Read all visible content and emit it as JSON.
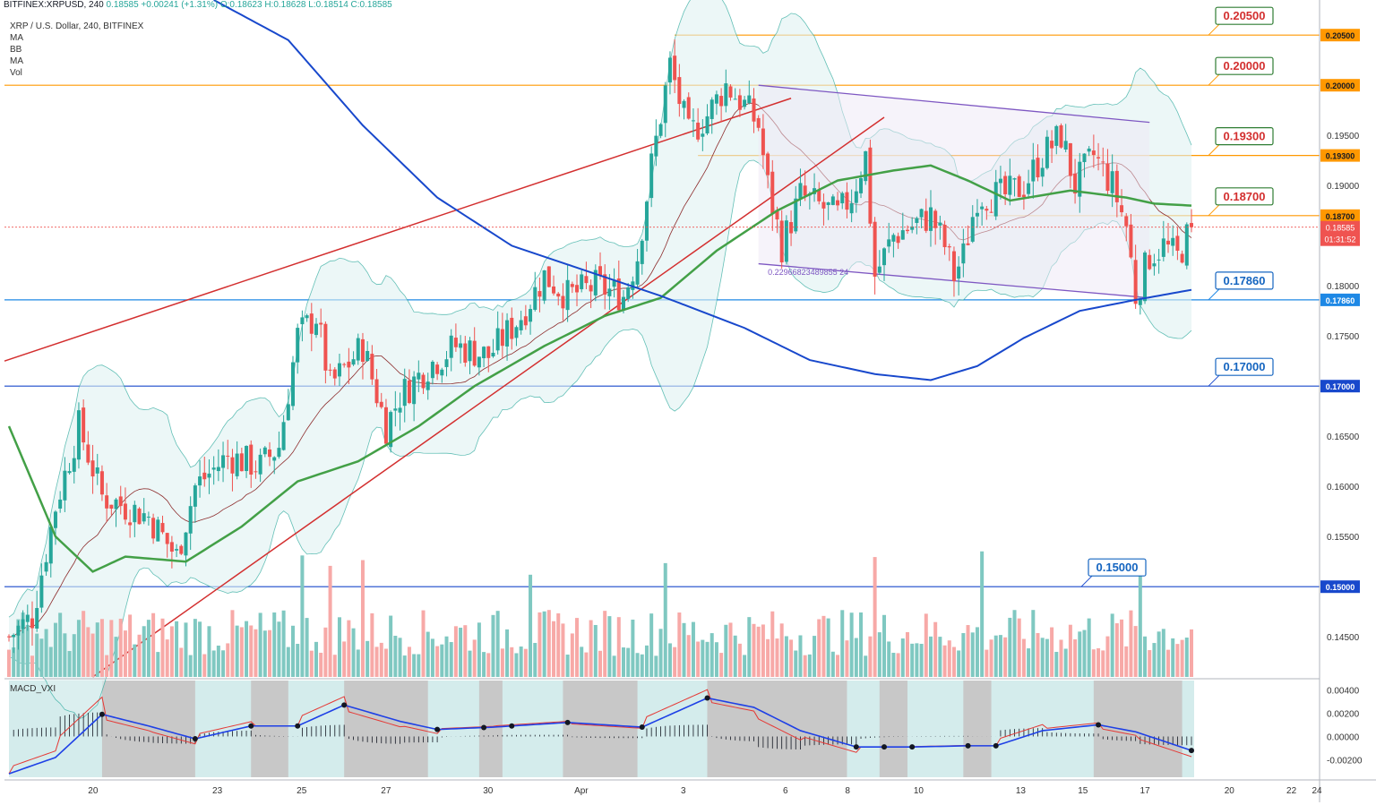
{
  "header": {
    "symbol": "BITFINEX:XRPUSD, 240",
    "last": "0.18585",
    "change": "+0.00241 (+1.31%)",
    "o": "O:0.18623",
    "h": "H:0.18628",
    "l": "L:0.18514",
    "c": "C:0.18585",
    "description": "XRP / U.S. Dollar, 240, BITFINEX"
  },
  "indicators": [
    "MA",
    "BB",
    "MA",
    "Vol"
  ],
  "macd_title": "MACD_VXI",
  "current_price": "0.18585",
  "countdown": "01:31:52",
  "trendline_label": "0.22966823489855 24",
  "colors": {
    "up": "#26a69a",
    "down": "#ef5350",
    "orange": "#ff9800",
    "blue": "#1848cc",
    "green": "#43a047",
    "red_line": "#d32f2f",
    "purple": "#7e57c2",
    "bb_fill": "#e0f2f1"
  },
  "chart_data": {
    "type": "candlestick",
    "title": "XRP / U.S. Dollar, 240, BITFINEX",
    "ylim": [
      0.141,
      0.2085
    ],
    "macd_ylim": [
      -0.0035,
      0.0048
    ],
    "x_tick_labels": [
      "20",
      "23",
      "25",
      "27",
      "30",
      "Apr",
      "3",
      "6",
      "8",
      "10",
      "13",
      "15",
      "17",
      "20",
      "22",
      "24"
    ],
    "y_tick_labels": [
      "0.20000",
      "0.19500",
      "0.19000",
      "0.18000",
      "0.17500",
      "0.16500",
      "0.16000",
      "0.15500",
      "0.14500"
    ],
    "macd_tick_labels": [
      "0.00400",
      "0.00200",
      "0.00000",
      "-0.00200"
    ],
    "horizontal_levels": [
      {
        "price": 0.205,
        "label": "0.20500",
        "color": "#ff9800",
        "text_color": "#d32f2f"
      },
      {
        "price": 0.2,
        "label": "0.20000",
        "color": "#ff9800",
        "text_color": "#d32f2f"
      },
      {
        "price": 0.193,
        "label": "0.19300",
        "color": "#ff9800",
        "text_color": "#d32f2f"
      },
      {
        "price": 0.187,
        "label": "0.18700",
        "color": "#ff9800",
        "text_color": "#d32f2f"
      },
      {
        "price": 0.1786,
        "label": "0.17860",
        "color": "#1e88e5",
        "text_color": "#1565c0"
      },
      {
        "price": 0.17,
        "label": "0.17000",
        "color": "#1848cc",
        "text_color": "#1565c0"
      },
      {
        "price": 0.15,
        "label": "0.15000",
        "color": "#1848cc",
        "text_color": "#1565c0"
      }
    ],
    "anchors": [
      {
        "t": 0,
        "p": 0.145
      },
      {
        "t": 5,
        "p": 0.147
      },
      {
        "t": 10,
        "p": 0.158
      },
      {
        "t": 15,
        "p": 0.166
      },
      {
        "t": 20,
        "p": 0.159
      },
      {
        "t": 25,
        "p": 0.158
      },
      {
        "t": 30,
        "p": 0.157
      },
      {
        "t": 36,
        "p": 0.153
      },
      {
        "t": 40,
        "p": 0.16
      },
      {
        "t": 47,
        "p": 0.163
      },
      {
        "t": 54,
        "p": 0.162
      },
      {
        "t": 58,
        "p": 0.164
      },
      {
        "t": 62,
        "p": 0.175
      },
      {
        "t": 66,
        "p": 0.177
      },
      {
        "t": 69,
        "p": 0.17
      },
      {
        "t": 76,
        "p": 0.174
      },
      {
        "t": 81,
        "p": 0.166
      },
      {
        "t": 84,
        "p": 0.169
      },
      {
        "t": 90,
        "p": 0.172
      },
      {
        "t": 96,
        "p": 0.174
      },
      {
        "t": 103,
        "p": 0.173
      },
      {
        "t": 110,
        "p": 0.177
      },
      {
        "t": 115,
        "p": 0.181
      },
      {
        "t": 120,
        "p": 0.179
      },
      {
        "t": 126,
        "p": 0.18
      },
      {
        "t": 132,
        "p": 0.179
      },
      {
        "t": 135,
        "p": 0.183
      },
      {
        "t": 138,
        "p": 0.192
      },
      {
        "t": 142,
        "p": 0.202
      },
      {
        "t": 146,
        "p": 0.195
      },
      {
        "t": 150,
        "p": 0.197
      },
      {
        "t": 154,
        "p": 0.2
      },
      {
        "t": 158,
        "p": 0.198
      },
      {
        "t": 161,
        "p": 0.196
      },
      {
        "t": 163,
        "p": 0.19
      },
      {
        "t": 166,
        "p": 0.184
      },
      {
        "t": 170,
        "p": 0.189
      },
      {
        "t": 174,
        "p": 0.188
      },
      {
        "t": 178,
        "p": 0.187
      },
      {
        "t": 181,
        "p": 0.189
      },
      {
        "t": 184,
        "p": 0.193
      },
      {
        "t": 186,
        "p": 0.181
      },
      {
        "t": 190,
        "p": 0.185
      },
      {
        "t": 194,
        "p": 0.186
      },
      {
        "t": 198,
        "p": 0.187
      },
      {
        "t": 201,
        "p": 0.184
      },
      {
        "t": 203,
        "p": 0.181
      },
      {
        "t": 205,
        "p": 0.183
      },
      {
        "t": 208,
        "p": 0.189
      },
      {
        "t": 214,
        "p": 0.189
      },
      {
        "t": 218,
        "p": 0.19
      },
      {
        "t": 222,
        "p": 0.193
      },
      {
        "t": 226,
        "p": 0.195
      },
      {
        "t": 229,
        "p": 0.19
      },
      {
        "t": 233,
        "p": 0.193
      },
      {
        "t": 237,
        "p": 0.19
      },
      {
        "t": 240,
        "p": 0.186
      },
      {
        "t": 242,
        "p": 0.179
      },
      {
        "t": 245,
        "p": 0.183
      },
      {
        "t": 248,
        "p": 0.184
      },
      {
        "t": 251,
        "p": 0.1828
      },
      {
        "t": 254,
        "p": 0.1858
      }
    ],
    "candle_count": 255,
    "ma_green": [
      {
        "t": 0,
        "p": 0.166
      },
      {
        "t": 10,
        "p": 0.155
      },
      {
        "t": 18,
        "p": 0.1515
      },
      {
        "t": 25,
        "p": 0.153
      },
      {
        "t": 38,
        "p": 0.1525
      },
      {
        "t": 50,
        "p": 0.156
      },
      {
        "t": 62,
        "p": 0.1605
      },
      {
        "t": 75,
        "p": 0.1625
      },
      {
        "t": 88,
        "p": 0.166
      },
      {
        "t": 100,
        "p": 0.17
      },
      {
        "t": 115,
        "p": 0.174
      },
      {
        "t": 128,
        "p": 0.177
      },
      {
        "t": 140,
        "p": 0.1788
      },
      {
        "t": 152,
        "p": 0.1835
      },
      {
        "t": 165,
        "p": 0.1875
      },
      {
        "t": 178,
        "p": 0.1905
      },
      {
        "t": 190,
        "p": 0.1915
      },
      {
        "t": 198,
        "p": 0.192
      },
      {
        "t": 206,
        "p": 0.1905
      },
      {
        "t": 215,
        "p": 0.1885
      },
      {
        "t": 228,
        "p": 0.1895
      },
      {
        "t": 240,
        "p": 0.1888
      },
      {
        "t": 246,
        "p": 0.1882
      },
      {
        "t": 254,
        "p": 0.188
      }
    ],
    "ma_blue": [
      {
        "t": 44,
        "p": 0.2085
      },
      {
        "t": 60,
        "p": 0.2045
      },
      {
        "t": 76,
        "p": 0.196
      },
      {
        "t": 92,
        "p": 0.1888
      },
      {
        "t": 108,
        "p": 0.184
      },
      {
        "t": 124,
        "p": 0.1815
      },
      {
        "t": 140,
        "p": 0.179
      },
      {
        "t": 158,
        "p": 0.1758
      },
      {
        "t": 172,
        "p": 0.1726
      },
      {
        "t": 186,
        "p": 0.1712
      },
      {
        "t": 198,
        "p": 0.1706
      },
      {
        "t": 208,
        "p": 0.172
      },
      {
        "t": 218,
        "p": 0.1748
      },
      {
        "t": 230,
        "p": 0.1775
      },
      {
        "t": 242,
        "p": 0.1786
      },
      {
        "t": 254,
        "p": 0.1796
      }
    ],
    "macd_anchors": [
      {
        "t": 0,
        "v": -0.0032
      },
      {
        "t": 10,
        "v": -0.0018
      },
      {
        "t": 20,
        "v": 0.0019
      },
      {
        "t": 30,
        "v": 0.0009
      },
      {
        "t": 40,
        "v": -0.0002
      },
      {
        "t": 52,
        "v": 0.0009
      },
      {
        "t": 62,
        "v": 0.0009
      },
      {
        "t": 72,
        "v": 0.0027
      },
      {
        "t": 84,
        "v": 0.0013
      },
      {
        "t": 92,
        "v": 0.0006
      },
      {
        "t": 104,
        "v": 0.0008
      },
      {
        "t": 120,
        "v": 0.0012
      },
      {
        "t": 136,
        "v": 0.0008
      },
      {
        "t": 150,
        "v": 0.0033
      },
      {
        "t": 160,
        "v": 0.0025
      },
      {
        "t": 170,
        "v": 0.0005
      },
      {
        "t": 182,
        "v": -0.0009
      },
      {
        "t": 194,
        "v": -0.0009
      },
      {
        "t": 206,
        "v": -0.0008
      },
      {
        "t": 212,
        "v": -0.0008
      },
      {
        "t": 222,
        "v": 0.0005
      },
      {
        "t": 234,
        "v": 0.001
      },
      {
        "t": 242,
        "v": 0.0004
      },
      {
        "t": 254,
        "v": -0.0012
      }
    ],
    "macd_dots": [
      20,
      40,
      52,
      62,
      72,
      92,
      102,
      108,
      120,
      136,
      150,
      182,
      188,
      194,
      206,
      212,
      234,
      254
    ],
    "macd_gray_zones": [
      [
        20,
        40
      ],
      [
        52,
        60
      ],
      [
        72,
        90
      ],
      [
        101,
        106
      ],
      [
        119,
        135
      ],
      [
        150,
        180
      ],
      [
        187,
        193
      ],
      [
        205,
        211
      ],
      [
        233,
        252
      ]
    ],
    "volume_ylim": [
      0,
      7.0
    ]
  }
}
